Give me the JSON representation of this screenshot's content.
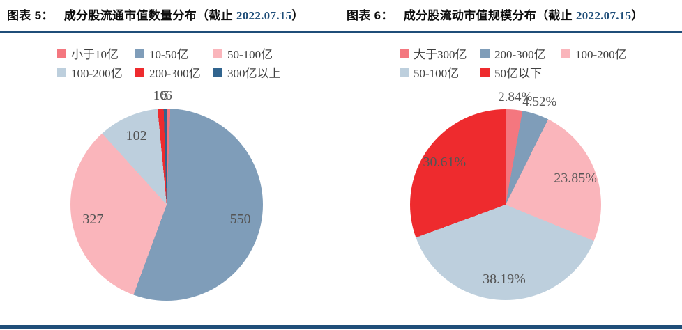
{
  "styles": {
    "accent_rule_color": "#1F4E79",
    "title_color": "#0d0d0d",
    "title_date_color": "#1F4E79",
    "legend_text_color": "#3f3f3f",
    "data_label_color": "#545454",
    "background": "#ffffff"
  },
  "charts": [
    {
      "title_prefix": "图表 5：",
      "title_main": "成分股流通市值数量分布（截止 ",
      "title_date": "2022.07.15",
      "title_close": "）"
    },
    {
      "title_prefix": "图表 6：",
      "title_main": "成分股流动市值规模分布（截止 ",
      "title_date": "2022.07.15",
      "title_close": "）"
    }
  ],
  "chart_data": [
    {
      "type": "pie",
      "title": "成分股流通市值数量分布（截止 2022.07.15）",
      "value_kind": "count",
      "total": 1000,
      "categories": [
        "小于10亿",
        "10-50亿",
        "50-100亿",
        "100-200亿",
        "200-300亿",
        "300亿以上"
      ],
      "values": [
        6,
        550,
        327,
        102,
        10,
        5
      ],
      "labels": [
        "6",
        "550",
        "327",
        "102",
        "10",
        "5"
      ],
      "colors": [
        "#F4777F",
        "#7F9DB9",
        "#FAB5BB",
        "#BDCFDD",
        "#EE2B2E",
        "#31648E"
      ],
      "legend_position": "top",
      "start_angle_deg": 0,
      "direction": "clockwise"
    },
    {
      "type": "pie",
      "title": "成分股流动市值规模分布（截止 2022.07.15）",
      "value_kind": "percent",
      "categories": [
        "大于300亿",
        "200-300亿",
        "100-200亿",
        "50-100亿",
        "50亿以下"
      ],
      "values": [
        2.84,
        4.52,
        23.85,
        38.19,
        30.61
      ],
      "labels": [
        "2.84%",
        "4.52%",
        "23.85%",
        "38.19%",
        "30.61%"
      ],
      "colors": [
        "#F4777F",
        "#7F9DB9",
        "#FAB5BB",
        "#BDCFDD",
        "#EE2B2E"
      ],
      "legend_position": "top",
      "start_angle_deg": 0,
      "direction": "clockwise"
    }
  ]
}
